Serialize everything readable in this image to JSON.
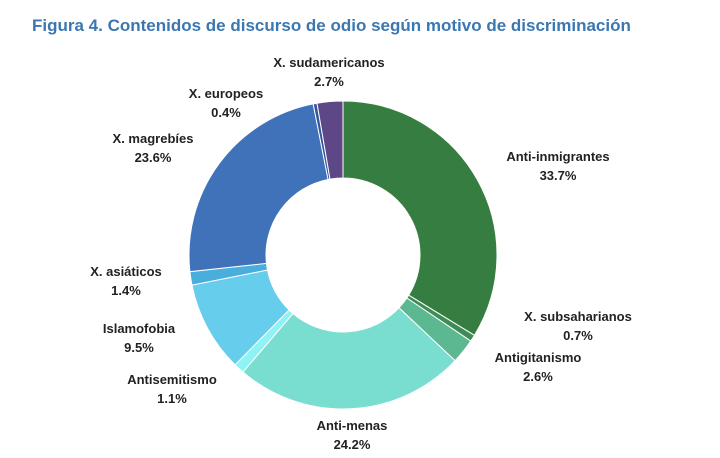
{
  "chart_data": {
    "type": "pie",
    "title": "Figura 4. Contenidos de discurso de odio según motivo de discriminación",
    "slices": [
      {
        "name": "Anti-inmigrantes",
        "value": 33.7,
        "label": "33.7%",
        "color": "#357d40"
      },
      {
        "name": "X. subsaharianos",
        "value": 0.7,
        "label": "0.7%",
        "color": "#3e8c55"
      },
      {
        "name": "Antigitanismo",
        "value": 2.6,
        "label": "2.6%",
        "color": "#5bb890"
      },
      {
        "name": "Anti-menas",
        "value": 24.2,
        "label": "24.2%",
        "color": "#79ddd0"
      },
      {
        "name": "Antisemitismo",
        "value": 1.1,
        "label": "1.1%",
        "color": "#8ff2f4"
      },
      {
        "name": "Islamofobia",
        "value": 9.5,
        "label": "9.5%",
        "color": "#66cdec"
      },
      {
        "name": "X. asiáticos",
        "value": 1.4,
        "label": "1.4%",
        "color": "#4aaedc"
      },
      {
        "name": "X. magrebíes",
        "value": 23.6,
        "label": "23.6%",
        "color": "#3f72b8"
      },
      {
        "name": "X. europeos",
        "value": 0.4,
        "label": "0.4%",
        "color": "#3456a0"
      },
      {
        "name": "X. sudamericanos",
        "value": 2.7,
        "label": "2.7%",
        "color": "#5d4786"
      }
    ],
    "legend": "none",
    "grid": false
  }
}
